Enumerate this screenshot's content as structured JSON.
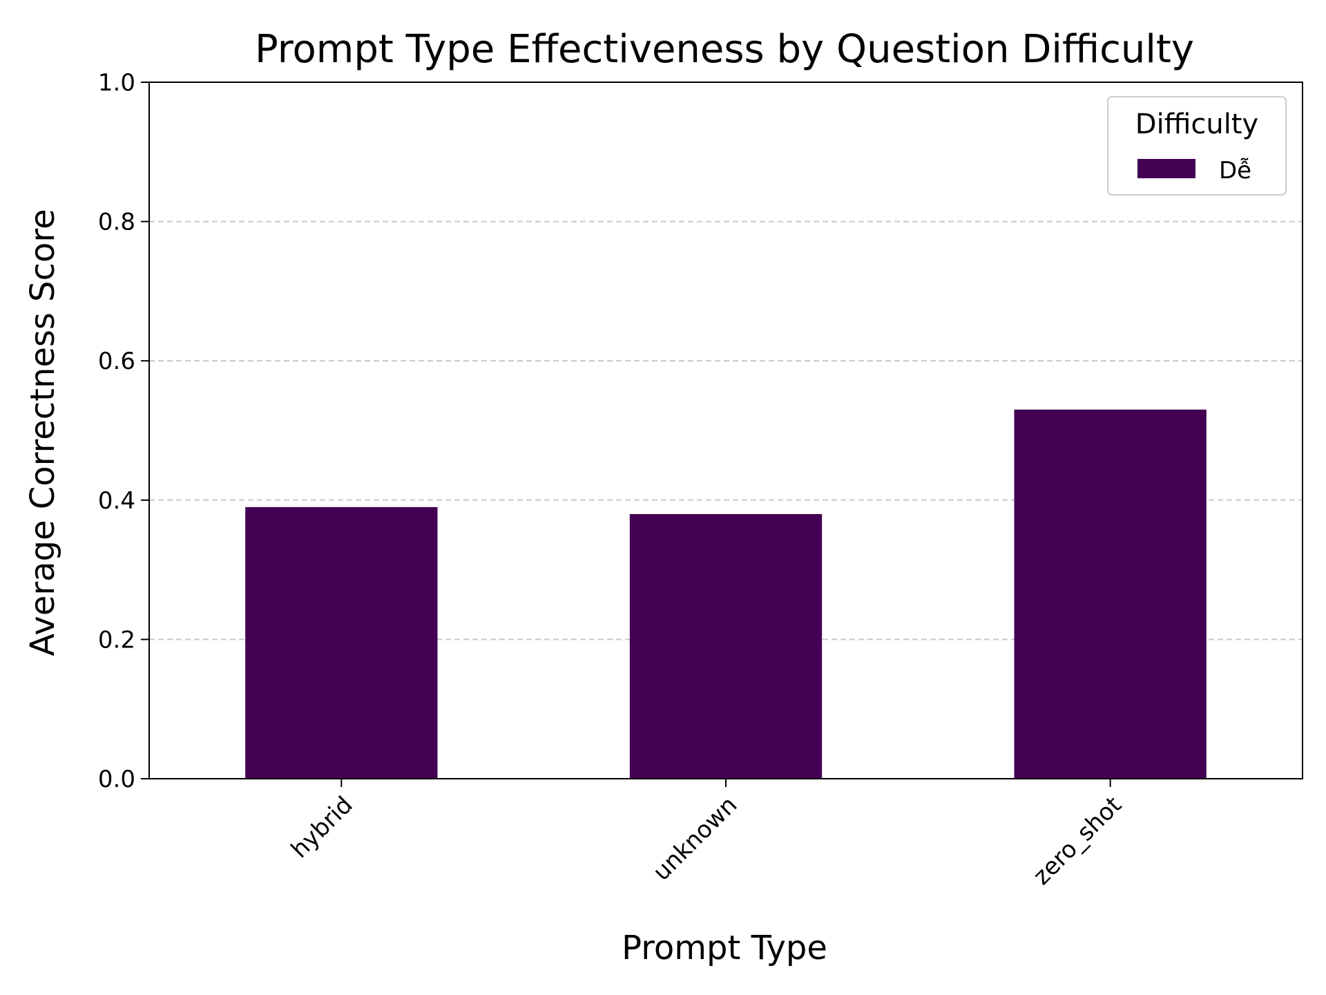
{
  "chart_data": {
    "type": "bar",
    "title": "Prompt Type Effectiveness by Question Difficulty",
    "xlabel": "Prompt Type",
    "ylabel": "Average Correctness Score",
    "categories": [
      "hybrid",
      "unknown",
      "zero_shot"
    ],
    "series": [
      {
        "name": "Dễ",
        "values": [
          0.39,
          0.38,
          0.53
        ],
        "color": "#440154"
      }
    ],
    "ylim": [
      0,
      1
    ],
    "yticks": [
      "0.0",
      "0.2",
      "0.4",
      "0.6",
      "0.8",
      "1.0"
    ],
    "grid": "y, dashed",
    "legend": {
      "title": "Difficulty",
      "placement": "upper-right"
    }
  }
}
